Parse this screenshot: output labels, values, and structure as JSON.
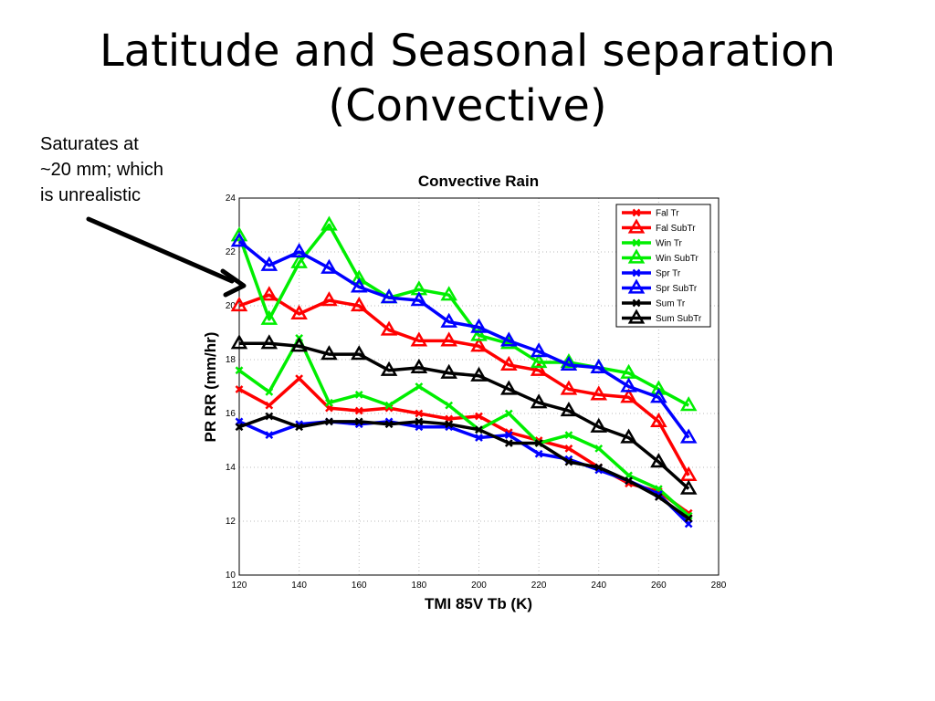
{
  "slide": {
    "title_line1": "Latitude and Seasonal separation",
    "title_line2": "(Convective)"
  },
  "annotation": {
    "line1": "Saturates at",
    "line2": "~20 mm; which",
    "line3": "is unrealistic"
  },
  "chart_data": {
    "type": "line",
    "title": "Convective Rain",
    "xlabel": "TMI 85V Tb (K)",
    "ylabel": "PR RR (mm/hr)",
    "xlim": [
      120,
      280
    ],
    "ylim": [
      10,
      24
    ],
    "xticks": [
      120,
      140,
      160,
      180,
      200,
      220,
      240,
      260,
      280
    ],
    "yticks": [
      10,
      12,
      14,
      16,
      18,
      20,
      22,
      24
    ],
    "grid": true,
    "legend_position": "top-right",
    "x": [
      120,
      130,
      140,
      150,
      160,
      170,
      180,
      190,
      200,
      210,
      220,
      230,
      240,
      250,
      260,
      270
    ],
    "series": [
      {
        "name": "Fal Tr",
        "color": "#ff0000",
        "marker": "x",
        "values": [
          16.9,
          16.3,
          17.3,
          16.2,
          16.1,
          16.2,
          16.0,
          15.8,
          15.9,
          15.3,
          15.0,
          14.7,
          14.0,
          13.4,
          13.1,
          12.3
        ]
      },
      {
        "name": "Fal SubTr",
        "color": "#ff0000",
        "marker": "triangle",
        "values": [
          20.0,
          20.4,
          19.7,
          20.2,
          20.0,
          19.1,
          18.7,
          18.7,
          18.5,
          17.8,
          17.6,
          16.9,
          16.7,
          16.6,
          15.7,
          13.7
        ]
      },
      {
        "name": "Win Tr",
        "color": "#00ee00",
        "marker": "x",
        "values": [
          17.6,
          16.8,
          18.8,
          16.4,
          16.7,
          16.3,
          17.0,
          16.3,
          15.4,
          16.0,
          14.9,
          15.2,
          14.7,
          13.7,
          13.2,
          12.2
        ]
      },
      {
        "name": "Win SubTr",
        "color": "#00ee00",
        "marker": "triangle",
        "values": [
          22.6,
          19.5,
          21.6,
          23.0,
          21.0,
          20.3,
          20.6,
          20.4,
          18.9,
          18.6,
          17.9,
          17.9,
          17.7,
          17.5,
          16.9,
          16.3
        ]
      },
      {
        "name": "Spr Tr",
        "color": "#0000ff",
        "marker": "x",
        "values": [
          15.7,
          15.2,
          15.6,
          15.7,
          15.6,
          15.7,
          15.5,
          15.5,
          15.1,
          15.2,
          14.5,
          14.3,
          13.9,
          13.5,
          13.0,
          11.9
        ]
      },
      {
        "name": "Spr SubTr",
        "color": "#0000ff",
        "marker": "triangle",
        "values": [
          22.4,
          21.5,
          22.0,
          21.4,
          20.7,
          20.3,
          20.2,
          19.4,
          19.2,
          18.7,
          18.3,
          17.8,
          17.7,
          17.0,
          16.6,
          15.1
        ]
      },
      {
        "name": "Sum Tr",
        "color": "#000000",
        "marker": "x",
        "values": [
          15.5,
          15.9,
          15.5,
          15.7,
          15.7,
          15.6,
          15.7,
          15.6,
          15.4,
          14.9,
          14.9,
          14.2,
          14.0,
          13.5,
          12.9,
          12.1
        ]
      },
      {
        "name": "Sum SubTr",
        "color": "#000000",
        "marker": "triangle",
        "values": [
          18.6,
          18.6,
          18.5,
          18.2,
          18.2,
          17.6,
          17.7,
          17.5,
          17.4,
          16.9,
          16.4,
          16.1,
          15.5,
          15.1,
          14.2,
          13.2
        ]
      }
    ]
  }
}
